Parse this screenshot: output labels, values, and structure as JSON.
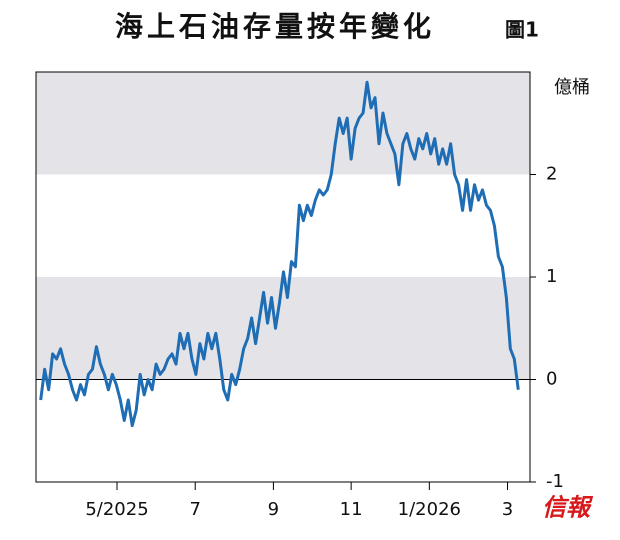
{
  "chart_data": {
    "type": "line",
    "title": "海上石油存量按年變化",
    "subtitle": "圖1",
    "y_label": "億桶",
    "source_logo": "信報",
    "x": [
      2025.17,
      2025.1785,
      2025.187,
      2025.1955,
      2025.204,
      2025.2125,
      2025.221,
      2025.2295,
      2025.238,
      2025.2465,
      2025.255,
      2025.2635,
      2025.272,
      2025.2805,
      2025.289,
      2025.2975,
      2025.306,
      2025.3145,
      2025.323,
      2025.3315,
      2025.34,
      2025.3485,
      2025.357,
      2025.3655,
      2025.374,
      2025.3825,
      2025.391,
      2025.3995,
      2025.408,
      2025.4165,
      2025.425,
      2025.4335,
      2025.442,
      2025.4505,
      2025.459,
      2025.4675,
      2025.476,
      2025.4845,
      2025.493,
      2025.5015,
      2025.51,
      2025.5185,
      2025.527,
      2025.5355,
      2025.544,
      2025.5525,
      2025.561,
      2025.5695,
      2025.578,
      2025.5865,
      2025.595,
      2025.6035,
      2025.612,
      2025.6205,
      2025.629,
      2025.6375,
      2025.646,
      2025.6545,
      2025.663,
      2025.6715,
      2025.68,
      2025.6885,
      2025.697,
      2025.7055,
      2025.714,
      2025.7225,
      2025.731,
      2025.7395,
      2025.748,
      2025.7565,
      2025.765,
      2025.7735,
      2025.782,
      2025.7905,
      2025.799,
      2025.8075,
      2025.816,
      2025.8245,
      2025.833,
      2025.8415,
      2025.85,
      2025.8585,
      2025.867,
      2025.8755,
      2025.884,
      2025.8925,
      2025.901,
      2025.9095,
      2025.918,
      2025.9265,
      2025.935,
      2025.9435,
      2025.952,
      2025.9605,
      2025.969,
      2025.9775,
      2025.986,
      2025.9945,
      2026.003,
      2026.0115,
      2026.02,
      2026.0285,
      2026.037,
      2026.0455,
      2026.054,
      2026.0625,
      2026.071,
      2026.0795,
      2026.088,
      2026.0965,
      2026.105,
      2026.1135,
      2026.122,
      2026.1305,
      2026.139,
      2026.1475,
      2026.156,
      2026.1645,
      2026.173,
      2026.1815,
      2026.19
    ],
    "series": [
      {
        "color": "#1f6db5",
        "values": [
          -0.2,
          0.1,
          -0.1,
          0.25,
          0.2,
          0.3,
          0.15,
          0.05,
          -0.1,
          -0.2,
          -0.05,
          -0.15,
          0.05,
          0.1,
          0.32,
          0.15,
          0.05,
          -0.1,
          0.05,
          -0.05,
          -0.2,
          -0.4,
          -0.2,
          -0.45,
          -0.3,
          0.05,
          -0.15,
          0.0,
          -0.1,
          0.15,
          0.05,
          0.1,
          0.2,
          0.25,
          0.15,
          0.45,
          0.3,
          0.45,
          0.2,
          0.05,
          0.35,
          0.2,
          0.45,
          0.3,
          0.45,
          0.2,
          -0.1,
          -0.2,
          0.05,
          -0.05,
          0.1,
          0.3,
          0.4,
          0.6,
          0.35,
          0.6,
          0.85,
          0.55,
          0.8,
          0.5,
          0.75,
          1.05,
          0.8,
          1.15,
          1.1,
          1.7,
          1.55,
          1.7,
          1.6,
          1.75,
          1.85,
          1.8,
          1.85,
          2.0,
          2.3,
          2.55,
          2.4,
          2.55,
          2.15,
          2.45,
          2.55,
          2.6,
          2.9,
          2.65,
          2.75,
          2.3,
          2.6,
          2.4,
          2.3,
          2.2,
          1.9,
          2.3,
          2.4,
          2.25,
          2.15,
          2.35,
          2.25,
          2.4,
          2.2,
          2.35,
          2.1,
          2.25,
          2.1,
          2.3,
          2.0,
          1.9,
          1.65,
          1.95,
          1.65,
          1.9,
          1.75,
          1.85,
          1.7,
          1.65,
          1.5,
          1.2,
          1.1,
          0.8,
          0.3,
          0.2,
          -0.1
        ]
      }
    ],
    "xlim": [
      2025.16,
      2026.215
    ],
    "xticks": [
      {
        "value": 2025.333,
        "label": "5/2025"
      },
      {
        "value": 2025.5,
        "label": "7"
      },
      {
        "value": 2025.667,
        "label": "9"
      },
      {
        "value": 2025.833,
        "label": "11"
      },
      {
        "value": 2026.0,
        "label": "1/2026"
      },
      {
        "value": 2026.167,
        "label": "3"
      }
    ],
    "ylim": [
      -1,
      3
    ],
    "yticks": [
      -1,
      0,
      1,
      2
    ],
    "y_axis_side": "right",
    "bands": true
  }
}
